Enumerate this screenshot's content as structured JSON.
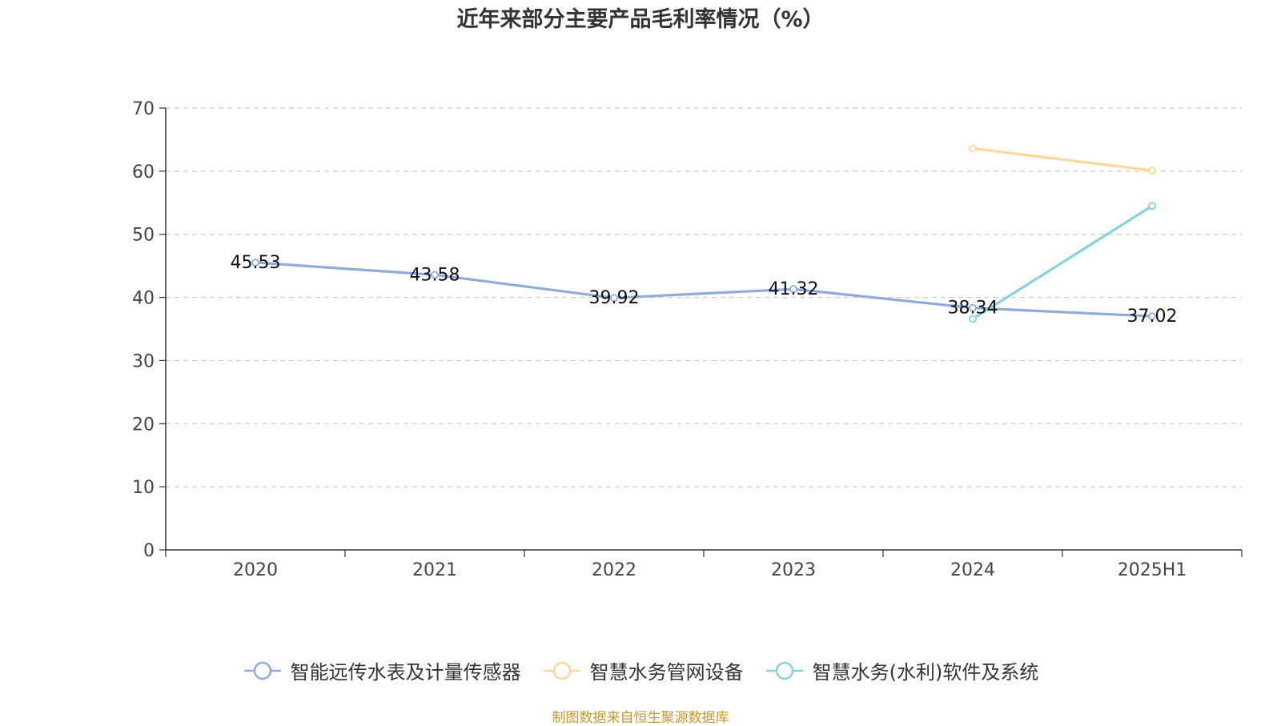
{
  "chart_data": {
    "type": "line",
    "title": "近年来部分主要产品毛利率情况（%）",
    "categories": [
      "2020",
      "2021",
      "2022",
      "2023",
      "2024",
      "2025H1"
    ],
    "ylim": [
      0,
      70
    ],
    "yticks": [
      0,
      10,
      20,
      30,
      40,
      50,
      60,
      70
    ],
    "grid": true,
    "legend_position": "bottom",
    "series": [
      {
        "name": "智能远传水表及计量传感器",
        "color": "#8fabd8",
        "values": [
          45.53,
          43.58,
          39.92,
          41.32,
          38.34,
          37.02
        ],
        "labels": [
          "45.53",
          "43.58",
          "39.92",
          "41.32",
          "38.34",
          "37.02"
        ]
      },
      {
        "name": "智慧水务管网设备",
        "color": "#fbd99a",
        "values": [
          null,
          null,
          null,
          null,
          63.6,
          60.1
        ],
        "labels": []
      },
      {
        "name": "智慧水务(水利)软件及系统",
        "color": "#86d4d9",
        "values": [
          null,
          null,
          null,
          null,
          36.6,
          54.5
        ],
        "labels": []
      }
    ]
  },
  "source": "制图数据来自恒生聚源数据库"
}
